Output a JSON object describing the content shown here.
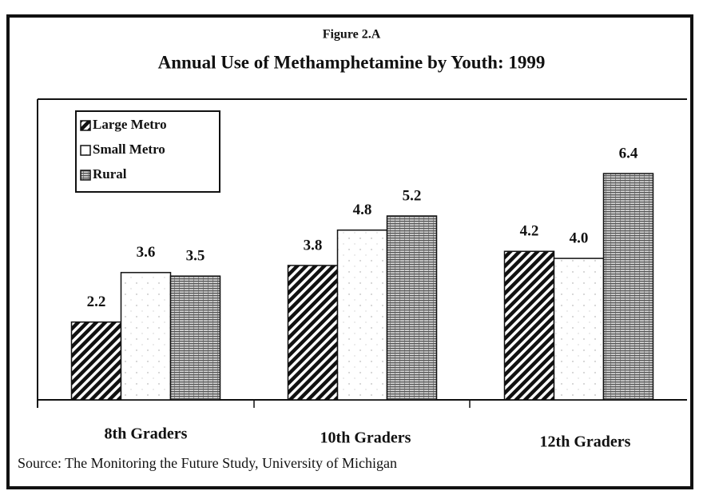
{
  "chart_data": {
    "type": "bar",
    "label": "Figure 2.A",
    "title": "Annual Use of Methamphetamine by Youth:  1999",
    "categories": [
      "8th Graders",
      "10th Graders",
      "12th Graders"
    ],
    "series": [
      {
        "name": "Large Metro",
        "values": [
          2.2,
          3.8,
          4.2
        ],
        "value_labels": [
          "2.2",
          "3.8",
          "4.2"
        ]
      },
      {
        "name": "Small Metro",
        "values": [
          3.6,
          4.8,
          4.0
        ],
        "value_labels": [
          "3.6",
          "4.8",
          "4.0"
        ]
      },
      {
        "name": "Rural",
        "values": [
          3.5,
          5.2,
          6.4
        ],
        "value_labels": [
          "3.5",
          "5.2",
          "6.4"
        ]
      }
    ],
    "source": "Source: The Monitoring the Future Study, University of Michigan"
  }
}
